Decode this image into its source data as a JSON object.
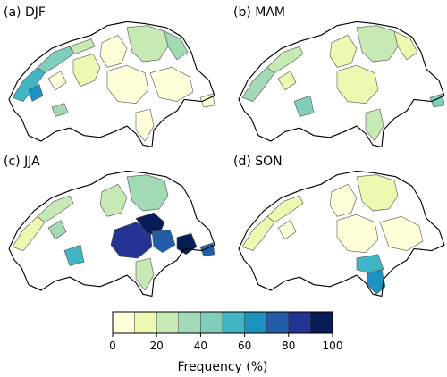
{
  "panels": [
    {
      "label": "(a) DJF"
    },
    {
      "label": "(b) MAM"
    },
    {
      "label": "(c) JJA"
    },
    {
      "label": "(d) SON"
    }
  ],
  "colorbar": {
    "label": "Frequency (%)",
    "ticks": [
      "0",
      "20",
      "40",
      "60",
      "80",
      "100"
    ],
    "bins": [
      0,
      10,
      20,
      30,
      40,
      50,
      60,
      70,
      80,
      90,
      100
    ],
    "colors": [
      "#ffffd9",
      "#edf8b1",
      "#c7e9b4",
      "#a1dab4",
      "#7fcdbb",
      "#41b6c4",
      "#1d91c0",
      "#225ea8",
      "#253494",
      "#081d58"
    ]
  },
  "map_data": {
    "type": "choropleth",
    "unit": "%",
    "seasons": [
      {
        "name": "DJF",
        "regions": [
          {
            "id": "jura-sw",
            "value": 55
          },
          {
            "id": "jura-mid",
            "value": 45
          },
          {
            "id": "jura-ne",
            "value": 25
          },
          {
            "id": "geneva-lake-n",
            "value": 60
          },
          {
            "id": "geneva-lake-s",
            "value": 35
          },
          {
            "id": "plateau-w",
            "value": 8
          },
          {
            "id": "plateau-c",
            "value": 15
          },
          {
            "id": "central-n",
            "value": 5
          },
          {
            "id": "ne-cluster",
            "value": 25
          },
          {
            "id": "ne-east",
            "value": 35
          },
          {
            "id": "alps-c",
            "value": 5
          },
          {
            "id": "graubuenden",
            "value": 5
          },
          {
            "id": "ticino",
            "value": 5
          },
          {
            "id": "engadin-e",
            "value": 5
          }
        ]
      },
      {
        "name": "MAM",
        "regions": [
          {
            "id": "jura-sw",
            "value": 35
          },
          {
            "id": "jura-mid",
            "value": 25
          },
          {
            "id": "plateau-w",
            "value": 15
          },
          {
            "id": "plateau-sw",
            "value": 45
          },
          {
            "id": "central-n",
            "value": 15
          },
          {
            "id": "ne-cluster",
            "value": 20
          },
          {
            "id": "ne-east",
            "value": 15
          },
          {
            "id": "alps-c",
            "value": 15
          },
          {
            "id": "ticino",
            "value": 25
          },
          {
            "id": "engadin-e",
            "value": 45
          }
        ]
      },
      {
        "name": "JJA",
        "regions": [
          {
            "id": "jura-sw",
            "value": 15
          },
          {
            "id": "jura-mid",
            "value": 25
          },
          {
            "id": "plateau-w",
            "value": 35
          },
          {
            "id": "plateau-sw",
            "value": 55
          },
          {
            "id": "central-n",
            "value": 25
          },
          {
            "id": "ne-cluster",
            "value": 35
          },
          {
            "id": "central-alps",
            "value": 80
          },
          {
            "id": "uri",
            "value": 90
          },
          {
            "id": "graubuenden-w",
            "value": 75
          },
          {
            "id": "engadin",
            "value": 95
          },
          {
            "id": "engadin-e",
            "value": 70
          },
          {
            "id": "ticino",
            "value": 25
          }
        ]
      },
      {
        "name": "SON",
        "regions": [
          {
            "id": "jura-sw",
            "value": 15
          },
          {
            "id": "jura-mid",
            "value": 10
          },
          {
            "id": "plateau-w",
            "value": 8
          },
          {
            "id": "central-n",
            "value": 5
          },
          {
            "id": "ne-cluster",
            "value": 15
          },
          {
            "id": "alps-c",
            "value": 5
          },
          {
            "id": "ticino-n",
            "value": 55
          },
          {
            "id": "ticino-s",
            "value": 65
          },
          {
            "id": "graubuenden",
            "value": 5
          }
        ]
      }
    ]
  }
}
